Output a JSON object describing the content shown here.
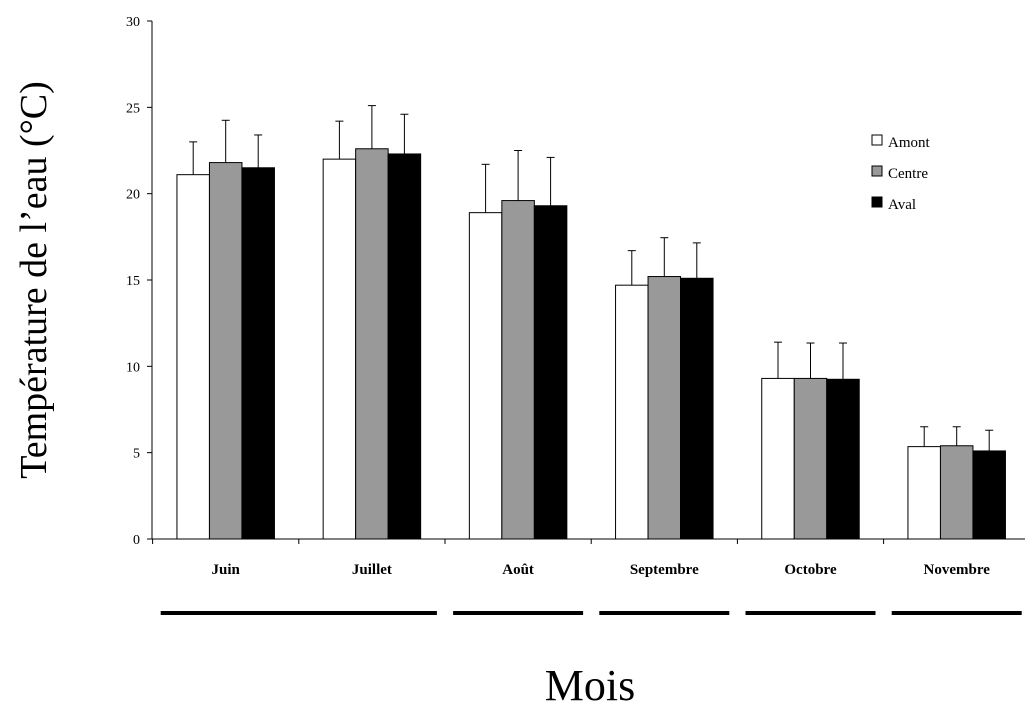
{
  "chart_data": {
    "type": "bar",
    "title": "",
    "xlabel": "Mois",
    "ylabel": "Température de l’eau (°C)",
    "ylim": [
      0,
      30
    ],
    "yticks": [
      0,
      5,
      10,
      15,
      20,
      25,
      30
    ],
    "grid": false,
    "legend_position": "top-right",
    "categories": [
      "Juin",
      "Juillet",
      "Août",
      "Septembre",
      "Octobre",
      "Novembre"
    ],
    "series": [
      {
        "name": "Amont",
        "color": "#ffffff",
        "values": [
          21.1,
          22.0,
          18.9,
          14.7,
          9.3,
          5.35
        ],
        "errors": [
          1.9,
          2.2,
          2.8,
          2.0,
          2.1,
          1.15
        ]
      },
      {
        "name": "Centre",
        "color": "#999999",
        "values": [
          21.8,
          22.6,
          19.6,
          15.2,
          9.3,
          5.4
        ],
        "errors": [
          2.45,
          2.5,
          2.9,
          2.25,
          2.05,
          1.1
        ]
      },
      {
        "name": "Aval",
        "color": "#000000",
        "values": [
          21.5,
          22.3,
          19.3,
          15.1,
          9.25,
          5.1
        ],
        "errors": [
          1.9,
          2.3,
          2.8,
          2.05,
          2.1,
          1.2
        ]
      }
    ],
    "period_groups": [
      {
        "start": 0,
        "end": 1
      },
      {
        "start": 2,
        "end": 2
      },
      {
        "start": 3,
        "end": 3
      },
      {
        "start": 4,
        "end": 4
      },
      {
        "start": 5,
        "end": 5
      }
    ]
  }
}
